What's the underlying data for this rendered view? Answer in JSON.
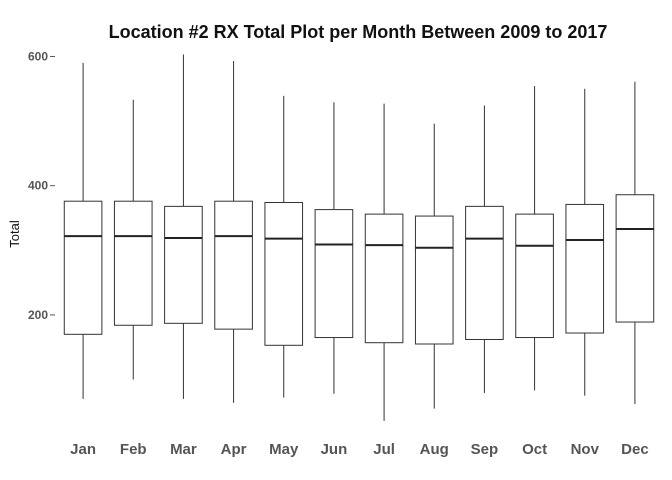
{
  "chart_data": {
    "type": "boxplot",
    "title": "Location #2 RX Total Plot per Month Between 2009 to 2017",
    "xlabel": "",
    "ylabel": "Total",
    "ylim": [
      25,
      610
    ],
    "yticks": [
      200,
      400,
      600
    ],
    "grid": false,
    "categories": [
      "Jan",
      "Feb",
      "Mar",
      "Apr",
      "May",
      "Jun",
      "Jul",
      "Aug",
      "Sep",
      "Oct",
      "Nov",
      "Dec"
    ],
    "boxes": [
      {
        "category": "Jan",
        "min": 70,
        "q1": 170,
        "median": 322,
        "q3": 376,
        "max": 590
      },
      {
        "category": "Feb",
        "min": 100,
        "q1": 184,
        "median": 322,
        "q3": 376,
        "max": 533
      },
      {
        "category": "Mar",
        "min": 70,
        "q1": 187,
        "median": 319,
        "q3": 368,
        "max": 603
      },
      {
        "category": "Apr",
        "min": 64,
        "q1": 178,
        "median": 322,
        "q3": 376,
        "max": 593
      },
      {
        "category": "May",
        "min": 72,
        "q1": 153,
        "median": 318,
        "q3": 374,
        "max": 539
      },
      {
        "category": "Jun",
        "min": 78,
        "q1": 165,
        "median": 309,
        "q3": 363,
        "max": 529
      },
      {
        "category": "Jul",
        "min": 36,
        "q1": 157,
        "median": 308,
        "q3": 356,
        "max": 527
      },
      {
        "category": "Aug",
        "min": 55,
        "q1": 155,
        "median": 304,
        "q3": 353,
        "max": 496
      },
      {
        "category": "Sep",
        "min": 79,
        "q1": 162,
        "median": 318,
        "q3": 368,
        "max": 524
      },
      {
        "category": "Oct",
        "min": 83,
        "q1": 165,
        "median": 307,
        "q3": 356,
        "max": 554
      },
      {
        "category": "Nov",
        "min": 75,
        "q1": 172,
        "median": 316,
        "q3": 371,
        "max": 550
      },
      {
        "category": "Dec",
        "min": 62,
        "q1": 189,
        "median": 333,
        "q3": 386,
        "max": 561
      }
    ],
    "colors": {
      "box_stroke": "#333333",
      "box_fill": "#ffffff",
      "axis_text": "#555555",
      "title": "#111111"
    }
  }
}
